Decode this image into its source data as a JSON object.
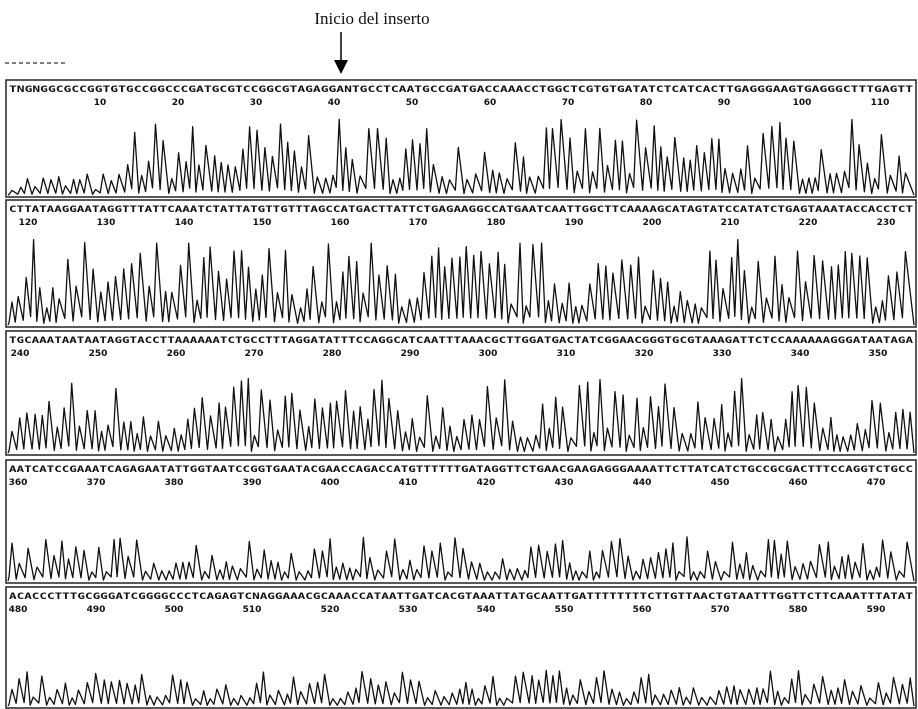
{
  "annotation": "Inicio del inserto",
  "panels": [
    {
      "sequence": "TNGNGGCGCCGGTGTGCCGGCCCGATGCGTCCGGCGTAGAGGANTGCCTCAATGCCGATGACCAAACCTGGCTCGTGTGATATCTCATCACTTGAGGGAAGTGAGGGCTTTGAGTT",
      "positions": [
        "10",
        "20",
        "30",
        "40",
        "50",
        "60",
        "70",
        "80",
        "90",
        "100",
        "110"
      ]
    },
    {
      "sequence": "CTTATAAGGAATAGGTTTATTCAAATCTATTATGTTGTTTAGCCATGACTTATTCTGAGAAGGCCATGAATCAATTGGCTTCAAAAGCATAGTATCCATATCTGAGTAAATACCACCTCT",
      "positions": [
        "120",
        "130",
        "140",
        "150",
        "160",
        "170",
        "180",
        "190",
        "200",
        "210",
        "220",
        "230"
      ]
    },
    {
      "sequence": "TGCAAATAATAATAGGTACCTTAAAAAATCTGCCTTTAGGATATTTCCAGGCATCAATTTAAACGCTTGGATGACTATCGGAACGGGTGCGTAAAGATTCTCCAAAAAAGGGATAATAGA",
      "positions": [
        "240",
        "250",
        "260",
        "270",
        "280",
        "290",
        "300",
        "310",
        "320",
        "330",
        "340",
        "350"
      ]
    },
    {
      "sequence": "AATCATCCGAAATCAGAGAATATTGGTAATCCGGTGAATACGAACCAGACCATGTTTTTTGATAGGTTCTGAACGAAGAGGGAAAATTCTTATCATCTGCCGCGACTTTCCAGGTCTGCC",
      "positions": [
        "360",
        "370",
        "380",
        "390",
        "400",
        "410",
        "420",
        "430",
        "440",
        "450",
        "460",
        "470"
      ]
    },
    {
      "sequence": "ACACCCTTTGCGGGATCGGGGCCCTCAGAGTCNAGGAAACGCAAACCATAATTGATCACGTAAATTATGCAATTGATTTTTTTTCTTGTTAACTGTAATTTGGTTCTTCAAATTTATAT",
      "positions": [
        "480",
        "490",
        "500",
        "510",
        "520",
        "530",
        "540",
        "550",
        "560",
        "570",
        "580",
        "590"
      ]
    }
  ]
}
